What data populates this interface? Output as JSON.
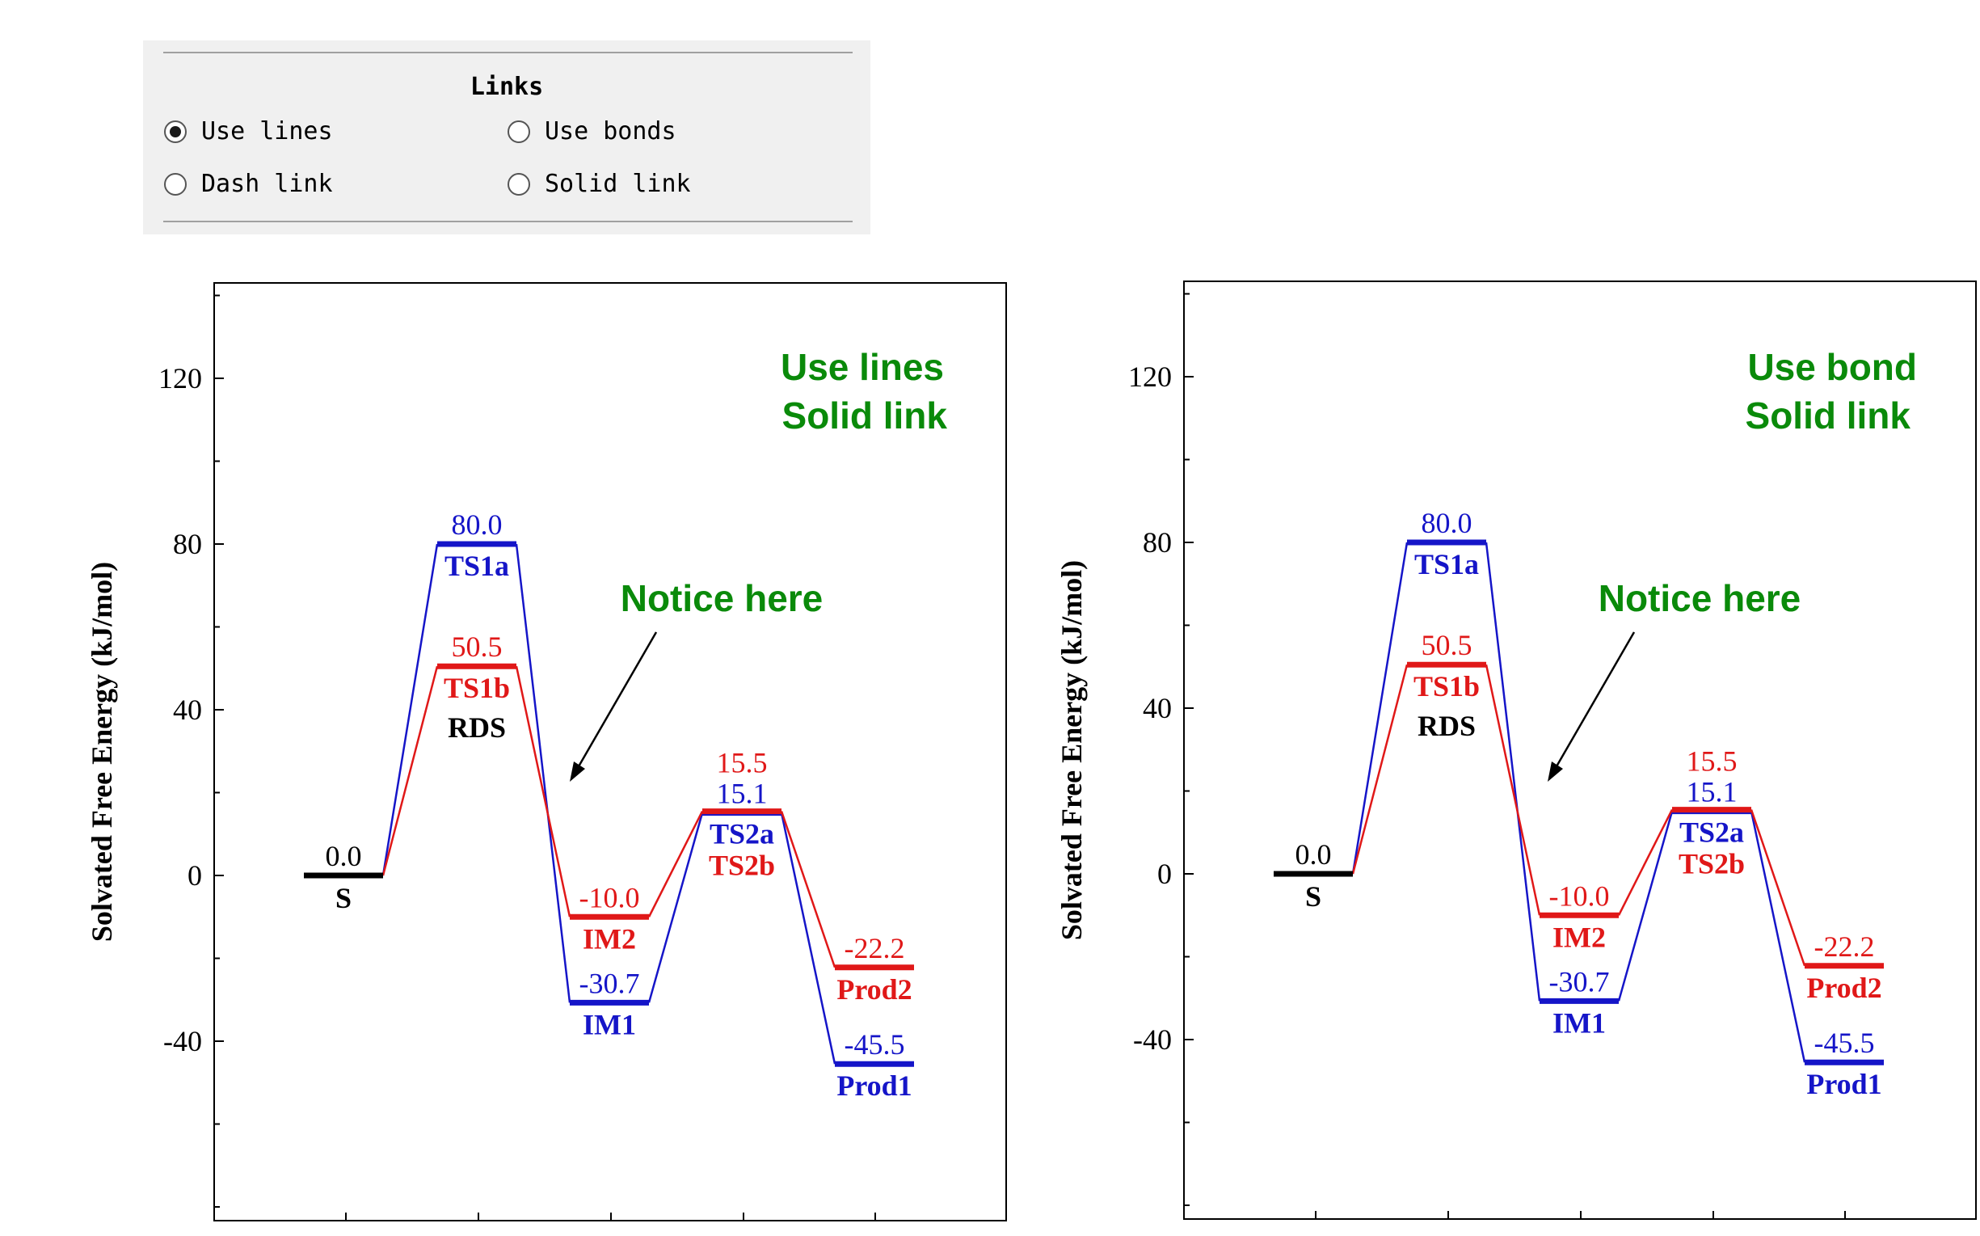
{
  "panel": {
    "title": "Links",
    "options": [
      {
        "label": "Use lines",
        "checked": true
      },
      {
        "label": "Use bonds",
        "checked": false
      },
      {
        "label": "Dash link",
        "checked": false
      },
      {
        "label": "Solid link",
        "checked": false
      }
    ]
  },
  "chart_data": [
    {
      "type": "line",
      "ylabel": "Solvated Free Energy (kJ/mol)",
      "ylim": [
        -80,
        140
      ],
      "yticks": [
        -40,
        0,
        40,
        80,
        120
      ],
      "annotations": {
        "corner_line1": "Use lines",
        "corner_line2": "Solid link",
        "notice": "Notice here"
      },
      "series": [
        {
          "color": "#1515c8",
          "states": [
            {
              "pos": 0,
              "value": 0.0
            },
            {
              "pos": 1,
              "value": 80.0,
              "label": "TS1a"
            },
            {
              "pos": 2,
              "value": -30.7,
              "label": "IM1"
            },
            {
              "pos": 3,
              "value": 15.1,
              "label": "TS2a"
            },
            {
              "pos": 4,
              "value": -45.5,
              "label": "Prod1"
            }
          ]
        },
        {
          "color": "#e01818",
          "states": [
            {
              "pos": 0,
              "value": 0.0
            },
            {
              "pos": 1,
              "value": 50.5,
              "label": "TS1b"
            },
            {
              "pos": 2,
              "value": -10.0,
              "label": "IM2"
            },
            {
              "pos": 3,
              "value": 15.5,
              "label": "TS2b"
            },
            {
              "pos": 4,
              "value": -22.2,
              "label": "Prod2"
            }
          ]
        }
      ],
      "start_state": {
        "value": "0.0",
        "label": "S",
        "color": "#000000"
      },
      "rds_label": "RDS"
    },
    {
      "type": "line",
      "ylabel": "Solvated Free Energy (kJ/mol)",
      "ylim": [
        -80,
        140
      ],
      "yticks": [
        -40,
        0,
        40,
        80,
        120
      ],
      "annotations": {
        "corner_line1": "Use bond",
        "corner_line2": "Solid link",
        "notice": "Notice here"
      },
      "series": [
        {
          "color": "#1515c8",
          "states": [
            {
              "pos": 0,
              "value": 0.0
            },
            {
              "pos": 1,
              "value": 80.0,
              "label": "TS1a"
            },
            {
              "pos": 2,
              "value": -30.7,
              "label": "IM1"
            },
            {
              "pos": 3,
              "value": 15.1,
              "label": "TS2a"
            },
            {
              "pos": 4,
              "value": -45.5,
              "label": "Prod1"
            }
          ]
        },
        {
          "color": "#e01818",
          "states": [
            {
              "pos": 0,
              "value": 0.0
            },
            {
              "pos": 1,
              "value": 50.5,
              "label": "TS1b"
            },
            {
              "pos": 2,
              "value": -10.0,
              "label": "IM2"
            },
            {
              "pos": 3,
              "value": 15.5,
              "label": "TS2b"
            },
            {
              "pos": 4,
              "value": -22.2,
              "label": "Prod2"
            }
          ]
        }
      ],
      "start_state": {
        "value": "0.0",
        "label": "S",
        "color": "#000000"
      },
      "rds_label": "RDS"
    }
  ]
}
